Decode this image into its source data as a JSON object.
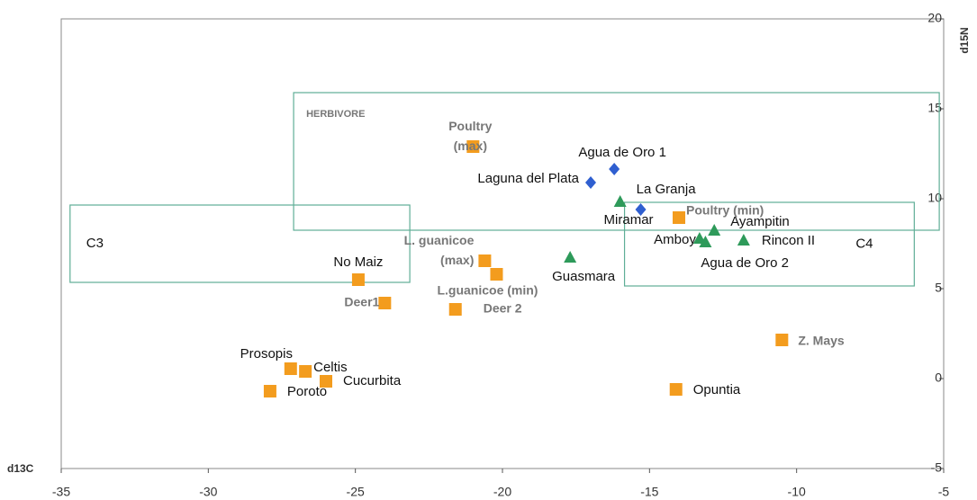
{
  "chart_data": {
    "type": "scatter",
    "x_label": "d13C",
    "y_label": "d15N",
    "xlim": [
      -35,
      -5
    ],
    "ylim": [
      -5,
      20
    ],
    "xticks": [
      -35,
      -30,
      -25,
      -20,
      -15,
      -10,
      -5
    ],
    "yticks": [
      -5,
      0,
      5,
      10,
      15,
      20
    ],
    "regions": [
      {
        "label": "HERBIVORE",
        "x": [
          -27.1,
          -5.15
        ],
        "y": [
          8.25,
          15.9
        ],
        "color": "#5fae96"
      },
      {
        "label": "C3",
        "x": [
          -34.7,
          -23.15
        ],
        "y": [
          5.35,
          9.65
        ],
        "color": "#5fae96"
      },
      {
        "label": "C4",
        "x": [
          -15.85,
          -6.0
        ],
        "y": [
          5.15,
          9.8
        ],
        "color": "#5fae96"
      }
    ],
    "series": [
      {
        "marker": "square",
        "color": "#f39c1e",
        "labels": [
          "Poultry (max)",
          "Poultry (min)",
          "No Maiz",
          "L. guanicoe (max)",
          "L.guanicoe (min)",
          "Deer1",
          "Deer 2",
          "Z. Mays",
          "Opuntia",
          "Prosopis",
          "Celtis",
          "Cucurbita",
          "Poroto"
        ],
        "x": [
          -21.0,
          -14.0,
          -24.9,
          -20.6,
          -20.2,
          -24.0,
          -21.6,
          -10.5,
          -14.1,
          -27.2,
          -26.7,
          -26.0,
          -27.9
        ],
        "values": [
          12.9,
          8.95,
          5.5,
          6.55,
          5.8,
          4.2,
          3.85,
          2.15,
          -0.6,
          0.55,
          0.4,
          -0.15,
          -0.7
        ]
      },
      {
        "marker": "diamond",
        "color": "#2f5fd0",
        "labels": [
          "Agua de Oro 1",
          "Laguna del Plata",
          "Miramar"
        ],
        "x": [
          -16.2,
          -17.0,
          -15.3
        ],
        "values": [
          11.65,
          10.9,
          9.4
        ]
      },
      {
        "marker": "triangle",
        "color": "#2e9a5a",
        "labels": [
          "La Granja",
          "Guasmara",
          "Amboy",
          "Ayampitin",
          "Agua de Oro 2",
          "Rincon II"
        ],
        "x": [
          -16.0,
          -17.7,
          -13.3,
          -12.8,
          -13.1,
          -11.8
        ],
        "values": [
          9.8,
          6.7,
          7.75,
          8.2,
          7.55,
          7.65
        ]
      }
    ]
  }
}
